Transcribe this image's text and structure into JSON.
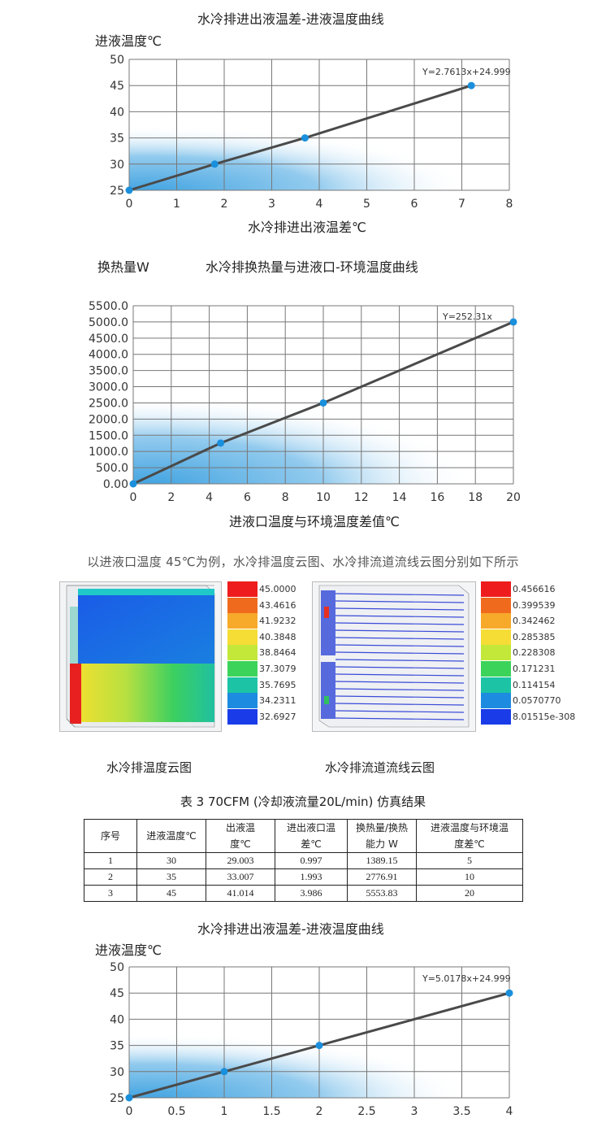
{
  "chart_data": [
    {
      "type": "line",
      "title": "水冷排进出液温差-进液温度曲线",
      "ylabel": "进液温度℃",
      "xlabel": "水冷排进出液温差℃",
      "equation": "Y=2.7613x+24.999",
      "xlim": [
        0,
        8
      ],
      "ylim": [
        25,
        50
      ],
      "x_ticks": [
        "0",
        "1",
        "2",
        "3",
        "4",
        "5",
        "6",
        "7",
        "8"
      ],
      "y_ticks": [
        "25",
        "30",
        "35",
        "40",
        "45",
        "50"
      ],
      "grid": true,
      "series": [
        {
          "x": [
            0,
            1.8,
            3.7,
            7.2
          ],
          "y": [
            25,
            30,
            35,
            45
          ]
        }
      ]
    },
    {
      "type": "line",
      "title": "水冷排换热量与进液口-环境温度曲线",
      "ylabel": "换热量W",
      "xlabel": "进液口温度与环境温度差值℃",
      "equation": "Y=252.31x",
      "xlim": [
        0,
        20
      ],
      "ylim": [
        0,
        5500
      ],
      "x_ticks": [
        "0",
        "2",
        "4",
        "6",
        "8",
        "10",
        "12",
        "14",
        "16",
        "18",
        "20"
      ],
      "y_ticks": [
        "0.00",
        "500.0",
        "1000.0",
        "1500.0",
        "2000.0",
        "2500.0",
        "3000.0",
        "3500.0",
        "4000.0",
        "4500.0",
        "5000.0",
        "5500.0"
      ],
      "grid": true,
      "series": [
        {
          "x": [
            0,
            4.6,
            10,
            20
          ],
          "y": [
            0,
            1260,
            2500,
            5000
          ]
        }
      ]
    },
    {
      "type": "line",
      "title": "水冷排进出液温差-进液温度曲线",
      "ylabel": "进液温度℃",
      "xlabel": "",
      "equation": "Y=5.0178x+24.999",
      "xlim": [
        0,
        4
      ],
      "ylim": [
        25,
        50
      ],
      "x_ticks": [
        "0",
        "0.5",
        "1",
        "1.5",
        "2",
        "2.5",
        "3",
        "3.5",
        "4"
      ],
      "y_ticks": [
        "25",
        "30",
        "35",
        "40",
        "45",
        "50"
      ],
      "grid": true,
      "series": [
        {
          "x": [
            0,
            1,
            2,
            4
          ],
          "y": [
            25,
            30,
            35,
            45
          ]
        }
      ]
    }
  ],
  "simulation": {
    "intro": "以进液口温度 45℃为例，水冷排温度云图、水冷排流道流线云图分别如下所示",
    "temp_legend": [
      "45.0000",
      "43.4616",
      "41.9232",
      "40.3848",
      "38.8464",
      "37.3079",
      "35.7695",
      "34.2311",
      "32.6927"
    ],
    "stream_legend": [
      "0.456616",
      "0.399539",
      "0.342462",
      "0.285385",
      "0.228308",
      "0.171231",
      "0.114154",
      "0.0570770",
      "8.01515e-308"
    ],
    "temp_caption": "水冷排温度云图",
    "stream_caption": "水冷排流道流线云图",
    "legend_colors": [
      "#ee1c1c",
      "#f06a1e",
      "#f7a92a",
      "#f5dd36",
      "#c3e83a",
      "#3cd35a",
      "#1cc4a5",
      "#1d8ce0",
      "#1a3ce8"
    ]
  },
  "table": {
    "title": "表 3  70CFM (冷却液流量20L/min) 仿真结果",
    "headers": [
      [
        "序号"
      ],
      [
        "进液温度℃"
      ],
      [
        "出液温",
        "度℃"
      ],
      [
        "进出液口温",
        "差℃"
      ],
      [
        "换热量/换热",
        "能力 W"
      ],
      [
        "进液温度与环境温",
        "度差℃"
      ]
    ],
    "rows": [
      [
        "1",
        "30",
        "29.003",
        "0.997",
        "1389.15",
        "5"
      ],
      [
        "2",
        "35",
        "33.007",
        "1.993",
        "2776.91",
        "10"
      ],
      [
        "3",
        "45",
        "41.014",
        "3.986",
        "5553.83",
        "20"
      ]
    ]
  },
  "colors": {
    "line": "#4a4a4a",
    "point": "#1a8fdc",
    "grid": "#777777",
    "fill": "#3aa0e0"
  }
}
